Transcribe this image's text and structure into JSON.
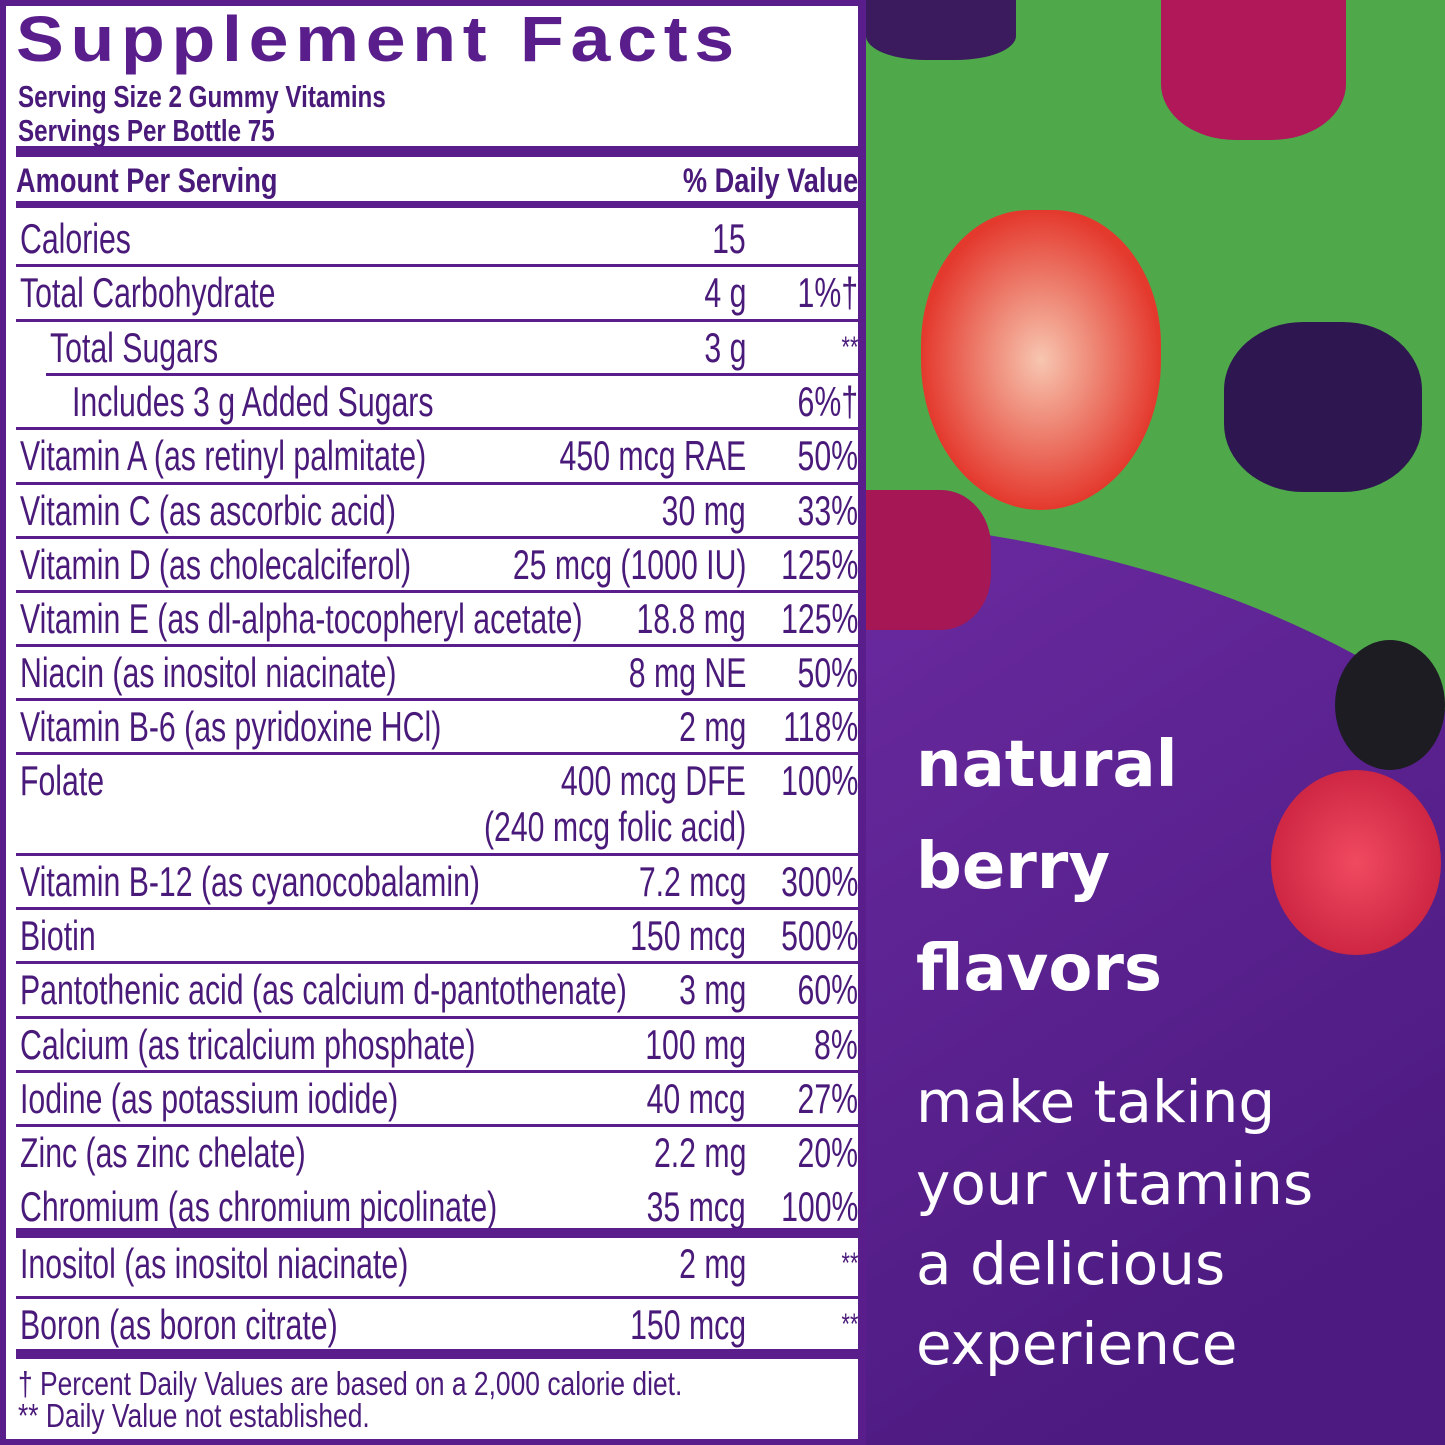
{
  "label": {
    "title": "Supplement Facts",
    "serving_size": "Serving Size 2 Gummy Vitamins",
    "servings_per": "Servings Per Bottle 75",
    "amount_header": "Amount Per Serving",
    "dv_header": "% Daily Value",
    "rows": [
      {
        "name": "Calories",
        "amount": "15",
        "dv": ""
      },
      {
        "name": "Total Carbohydrate",
        "amount": "4 g",
        "dv": "1%†"
      },
      {
        "name": "Total Sugars",
        "amount": "3 g",
        "dv": "**"
      },
      {
        "name": "Includes 3 g Added Sugars",
        "amount": "",
        "dv": "6%†"
      },
      {
        "name": "Vitamin A (as retinyl palmitate)",
        "amount": "450 mcg RAE",
        "dv": "50%"
      },
      {
        "name": "Vitamin C (as ascorbic acid)",
        "amount": "30 mg",
        "dv": "33%"
      },
      {
        "name": "Vitamin D (as cholecalciferol)",
        "amount": "25 mcg (1000 IU)",
        "dv": "125%"
      },
      {
        "name": "Vitamin E (as dl-alpha-tocopheryl acetate)",
        "amount": "18.8 mg",
        "dv": "125%"
      },
      {
        "name": "Niacin (as inositol niacinate)",
        "amount": "8 mg NE",
        "dv": "50%"
      },
      {
        "name": "Vitamin B-6 (as pyridoxine HCl)",
        "amount": "2 mg",
        "dv": "118%"
      },
      {
        "name": "Folate",
        "amount": "400 mcg DFE",
        "amount2": "(240 mcg folic acid)",
        "dv": "100%"
      },
      {
        "name": "Vitamin B-12 (as cyanocobalamin)",
        "amount": "7.2 mcg",
        "dv": "300%"
      },
      {
        "name": "Biotin",
        "amount": "150 mcg",
        "dv": "500%"
      },
      {
        "name": "Pantothenic acid (as calcium d-pantothenate)",
        "amount": "3 mg",
        "dv": "60%"
      },
      {
        "name": "Calcium (as tricalcium phosphate)",
        "amount": "100 mg",
        "dv": "8%"
      },
      {
        "name": "Iodine (as potassium iodide)",
        "amount": "40 mcg",
        "dv": "27%"
      },
      {
        "name": "Zinc (as zinc chelate)",
        "amount": "2.2 mg",
        "dv": "20%"
      },
      {
        "name": "Chromium (as chromium picolinate)",
        "amount": "35 mcg",
        "dv": "100%"
      },
      {
        "name": "Inositol (as inositol niacinate)",
        "amount": "2 mg",
        "dv": "**"
      },
      {
        "name": "Boron (as boron citrate)",
        "amount": "150 mcg",
        "dv": "**"
      }
    ],
    "footnote1": "† Percent Daily Values are based on a 2,000 calorie diet.",
    "footnote2": "** Daily Value not established."
  },
  "promo": {
    "headline": [
      "natural",
      "berry",
      "flavors"
    ],
    "body": [
      "make taking",
      "your vitamins",
      "a delicious",
      "experience"
    ]
  },
  "colors": {
    "purple": "#5a1d8c",
    "green": "#4fa84a",
    "text": "#4a1a7a"
  }
}
